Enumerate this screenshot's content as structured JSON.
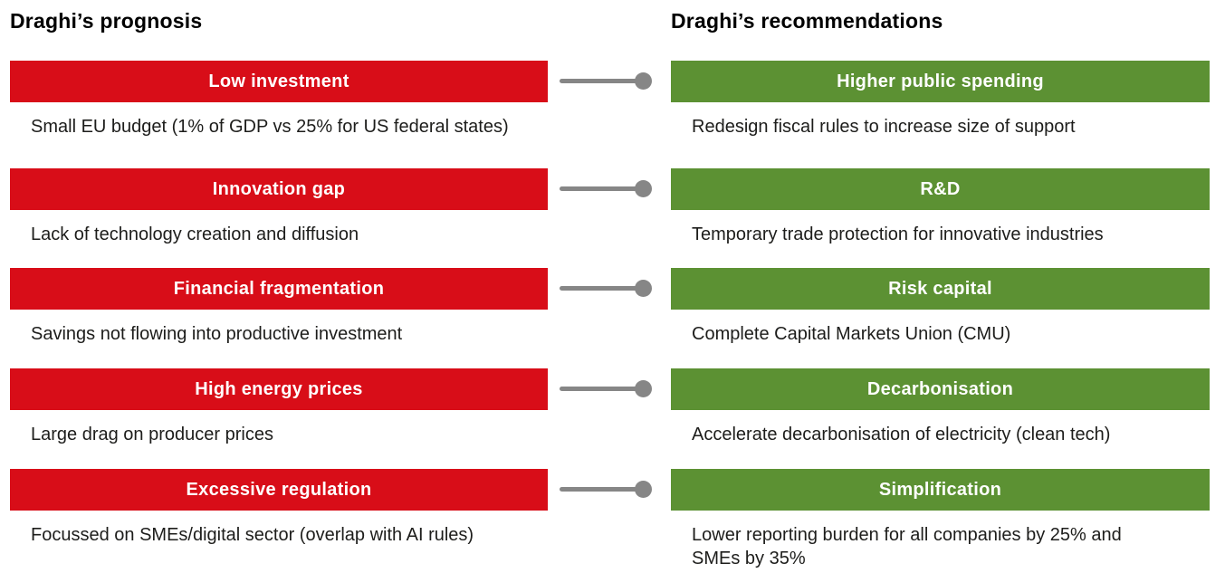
{
  "colors": {
    "prognosis_red": "#d80d18",
    "recommendation_green": "#5c9133",
    "connector_gray": "#868686",
    "body_text": "#1d1d1b",
    "box_text": "#ffffff"
  },
  "left_column": {
    "header": "Draghi’s prognosis",
    "items": [
      {
        "title": "Low investment",
        "description": "Small EU budget (1% of GDP vs 25% for US federal states)"
      },
      {
        "title": "Innovation gap",
        "description": "Lack of technology creation and diffusion"
      },
      {
        "title": "Financial fragmentation",
        "description": "Savings not flowing into productive investment"
      },
      {
        "title": "High energy prices",
        "description": "Large drag on producer prices"
      },
      {
        "title": "Excessive regulation",
        "description": "Focussed on SMEs/digital sector (overlap with AI rules)"
      }
    ]
  },
  "right_column": {
    "header": "Draghi’s recommendations",
    "items": [
      {
        "title": "Higher public spending",
        "description": "Redesign fiscal rules to increase size of support"
      },
      {
        "title": "R&D",
        "description": "Temporary trade protection for innovative industries"
      },
      {
        "title": "Risk capital",
        "description": "Complete Capital Markets Union (CMU)"
      },
      {
        "title": "Decarbonisation",
        "description": "Accelerate decarbonisation of electricity (clean tech)"
      },
      {
        "title": "Simplification",
        "description": "Lower reporting burden for all companies by 25% and SMEs by 35%"
      }
    ]
  }
}
